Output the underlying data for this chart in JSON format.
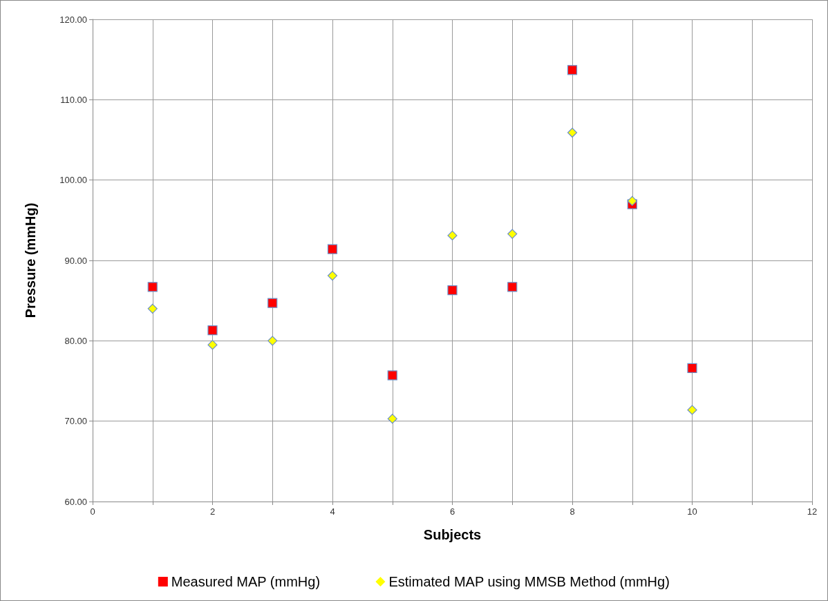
{
  "chart_data": {
    "type": "scatter",
    "xlabel": "Subjects",
    "ylabel": "Pressure (mmHg)",
    "xlim": [
      0,
      12
    ],
    "xticks": [
      0,
      {
        "value": 1,
        "label": null
      },
      2,
      {
        "value": 3,
        "label": null
      },
      4,
      {
        "value": 5,
        "label": null
      },
      6,
      {
        "value": 7,
        "label": null
      },
      8,
      {
        "value": 9,
        "label": null
      },
      10,
      {
        "value": 11,
        "label": null
      },
      12
    ],
    "ylim": [
      60,
      120
    ],
    "yticks": [
      {
        "value": 60,
        "label": "60.00"
      },
      {
        "value": 70,
        "label": "70.00"
      },
      {
        "value": 80,
        "label": "80.00"
      },
      {
        "value": 90,
        "label": "90.00"
      },
      {
        "value": 100,
        "label": "100.00"
      },
      {
        "value": 110,
        "label": "110.00"
      },
      {
        "value": 120,
        "label": "120.00"
      }
    ],
    "grid": true,
    "legend": "bottom",
    "x": [
      1,
      2,
      3,
      4,
      5,
      6,
      7,
      8,
      9,
      10
    ],
    "series": [
      {
        "name": "Measured MAP (mmHg)",
        "color": "#ff0000",
        "marker": "square",
        "values": [
          86.7,
          81.3,
          84.7,
          91.4,
          75.7,
          86.3,
          86.7,
          113.7,
          97.0,
          76.6
        ]
      },
      {
        "name": "Estimated MAP using MMSB Method (mmHg)",
        "color": "#ffff00",
        "marker": "diamond",
        "values": [
          84.0,
          79.5,
          80.0,
          88.1,
          70.3,
          93.1,
          93.3,
          105.9,
          97.4,
          71.4
        ]
      }
    ]
  }
}
